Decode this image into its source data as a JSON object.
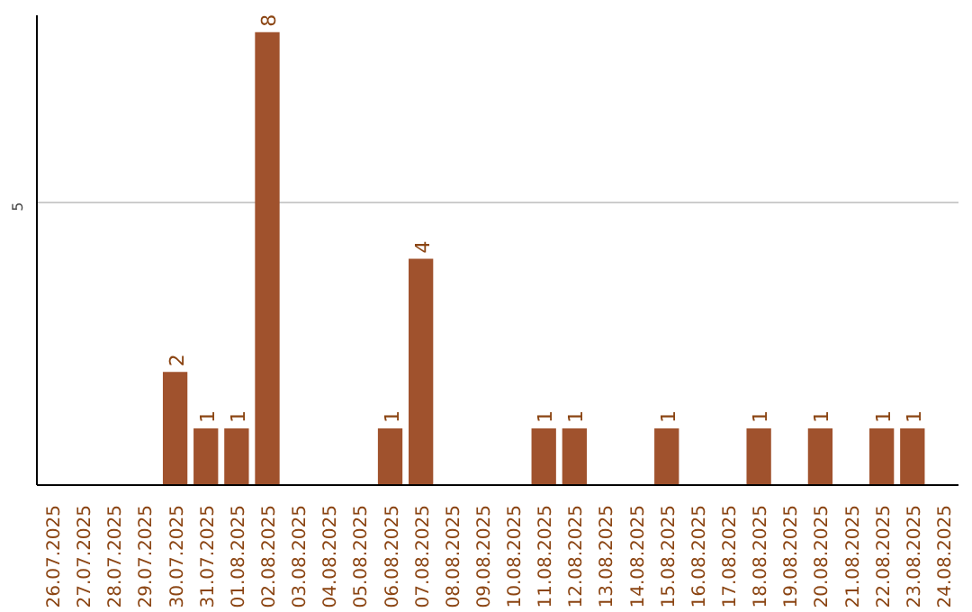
{
  "chart_data": {
    "type": "bar",
    "categories": [
      "26.07.2025",
      "27.07.2025",
      "28.07.2025",
      "29.07.2025",
      "30.07.2025",
      "31.07.2025",
      "01.08.2025",
      "02.08.2025",
      "03.08.2025",
      "04.08.2025",
      "05.08.2025",
      "06.08.2025",
      "07.08.2025",
      "08.08.2025",
      "09.08.2025",
      "10.08.2025",
      "11.08.2025",
      "12.08.2025",
      "13.08.2025",
      "14.08.2025",
      "15.08.2025",
      "16.08.2025",
      "17.08.2025",
      "18.08.2025",
      "19.08.2025",
      "20.08.2025",
      "21.08.2025",
      "22.08.2025",
      "23.08.2025",
      "24.08.2025"
    ],
    "values": [
      0,
      0,
      0,
      0,
      2,
      1,
      1,
      8,
      0,
      0,
      0,
      1,
      4,
      0,
      0,
      0,
      1,
      1,
      0,
      0,
      1,
      0,
      0,
      1,
      0,
      1,
      0,
      1,
      1,
      0
    ],
    "value_labels": [
      null,
      null,
      null,
      null,
      "2",
      "1",
      "1",
      "8",
      null,
      null,
      null,
      "1",
      "4",
      null,
      null,
      null,
      "1",
      "1",
      null,
      null,
      "1",
      null,
      null,
      "1",
      null,
      "1",
      null,
      "1",
      "1",
      null
    ],
    "color": "#a0522d",
    "ylim": [
      0,
      8.3
    ],
    "yticks": [
      5
    ],
    "grid": "y"
  }
}
